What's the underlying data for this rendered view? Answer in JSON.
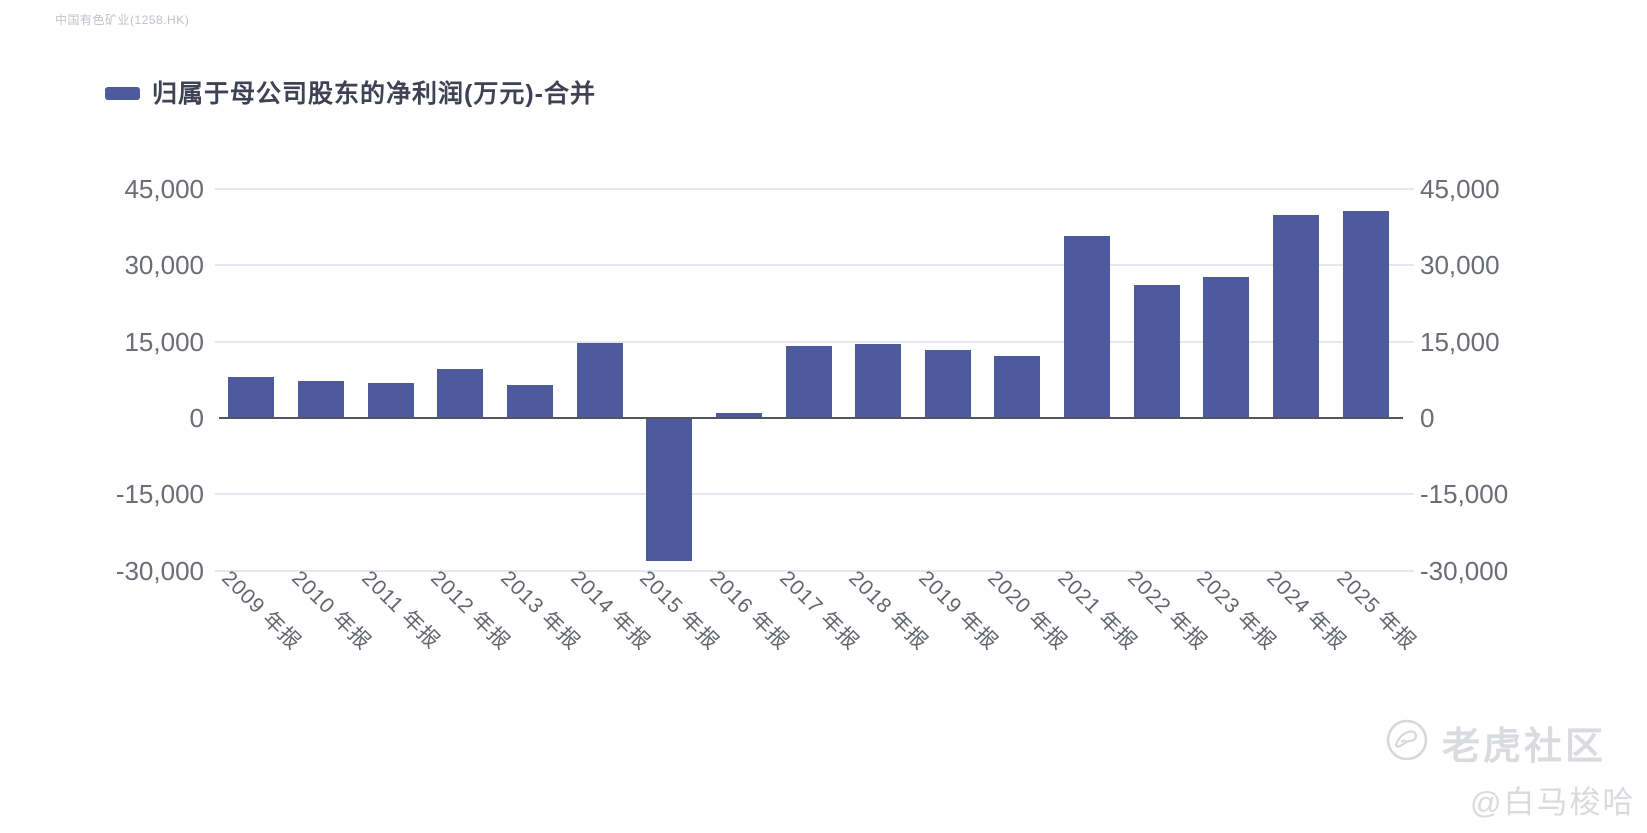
{
  "source_label": "中国有色矿业(1258.HK)",
  "legend": {
    "label": "归属于母公司股东的净利润(万元)-合并",
    "swatch_color": "#4d5a9e"
  },
  "chart_data": {
    "type": "bar",
    "title": "归属于母公司股东的净利润(万元)-合并",
    "categories": [
      "2009 年报",
      "2010 年报",
      "2011 年报",
      "2012 年报",
      "2013 年报",
      "2014 年报",
      "2015 年报",
      "2016 年报",
      "2017 年报",
      "2018 年报",
      "2019 年报",
      "2020 年报",
      "2021 年报",
      "2022 年报",
      "2023 年报",
      "2024 年报",
      "2025 年报"
    ],
    "values": [
      8100,
      7300,
      6900,
      9700,
      6500,
      14650,
      -28000,
      1000,
      14100,
      14550,
      13300,
      12200,
      35800,
      26200,
      27800,
      39800,
      40600
    ],
    "xlabel": "",
    "ylabel": "",
    "ylim": [
      -30000,
      45000
    ],
    "yticks": [
      45000,
      30000,
      15000,
      0,
      -15000,
      -30000
    ],
    "ytick_labels": [
      "45,000",
      "30,000",
      "15,000",
      "0",
      "-15,000",
      "-30,000"
    ],
    "bar_color": "#4d5a9e",
    "grid": true,
    "legend_position": "top-left",
    "dual_y_axis": true
  },
  "watermark": {
    "logo": "tiger-circle-icon",
    "community": "老虎社区",
    "user": "@白马梭哈"
  },
  "colors": {
    "bar": "#4d5a9e",
    "gridline": "#e4e6f0",
    "zero_axis": "#53565f",
    "axis_text": "#6a6d76",
    "legend_text": "#3f4254",
    "watermark_text": "#d9dbde",
    "source_text": "#c0c2c8"
  }
}
